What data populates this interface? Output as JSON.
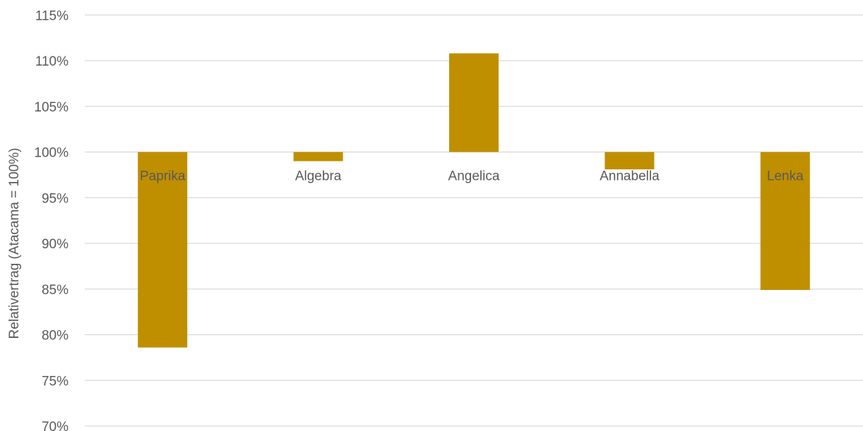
{
  "chart_data": {
    "type": "bar",
    "title": "",
    "xlabel": "",
    "ylabel": "Relativertrag (Atacama = 100%)",
    "baseline": 100,
    "ylim": [
      70,
      115
    ],
    "ytick_step": 5,
    "yticks": [
      "70%",
      "75%",
      "80%",
      "85%",
      "90%",
      "95%",
      "100%",
      "105%",
      "110%",
      "115%"
    ],
    "categories": [
      "Paprika",
      "Algebra",
      "Angelica",
      "Annabella",
      "Lenka"
    ],
    "values": [
      78.6,
      99.0,
      110.8,
      98.1,
      84.9
    ],
    "bar_color": "#bf8f00",
    "grid": true,
    "legend": "none"
  }
}
